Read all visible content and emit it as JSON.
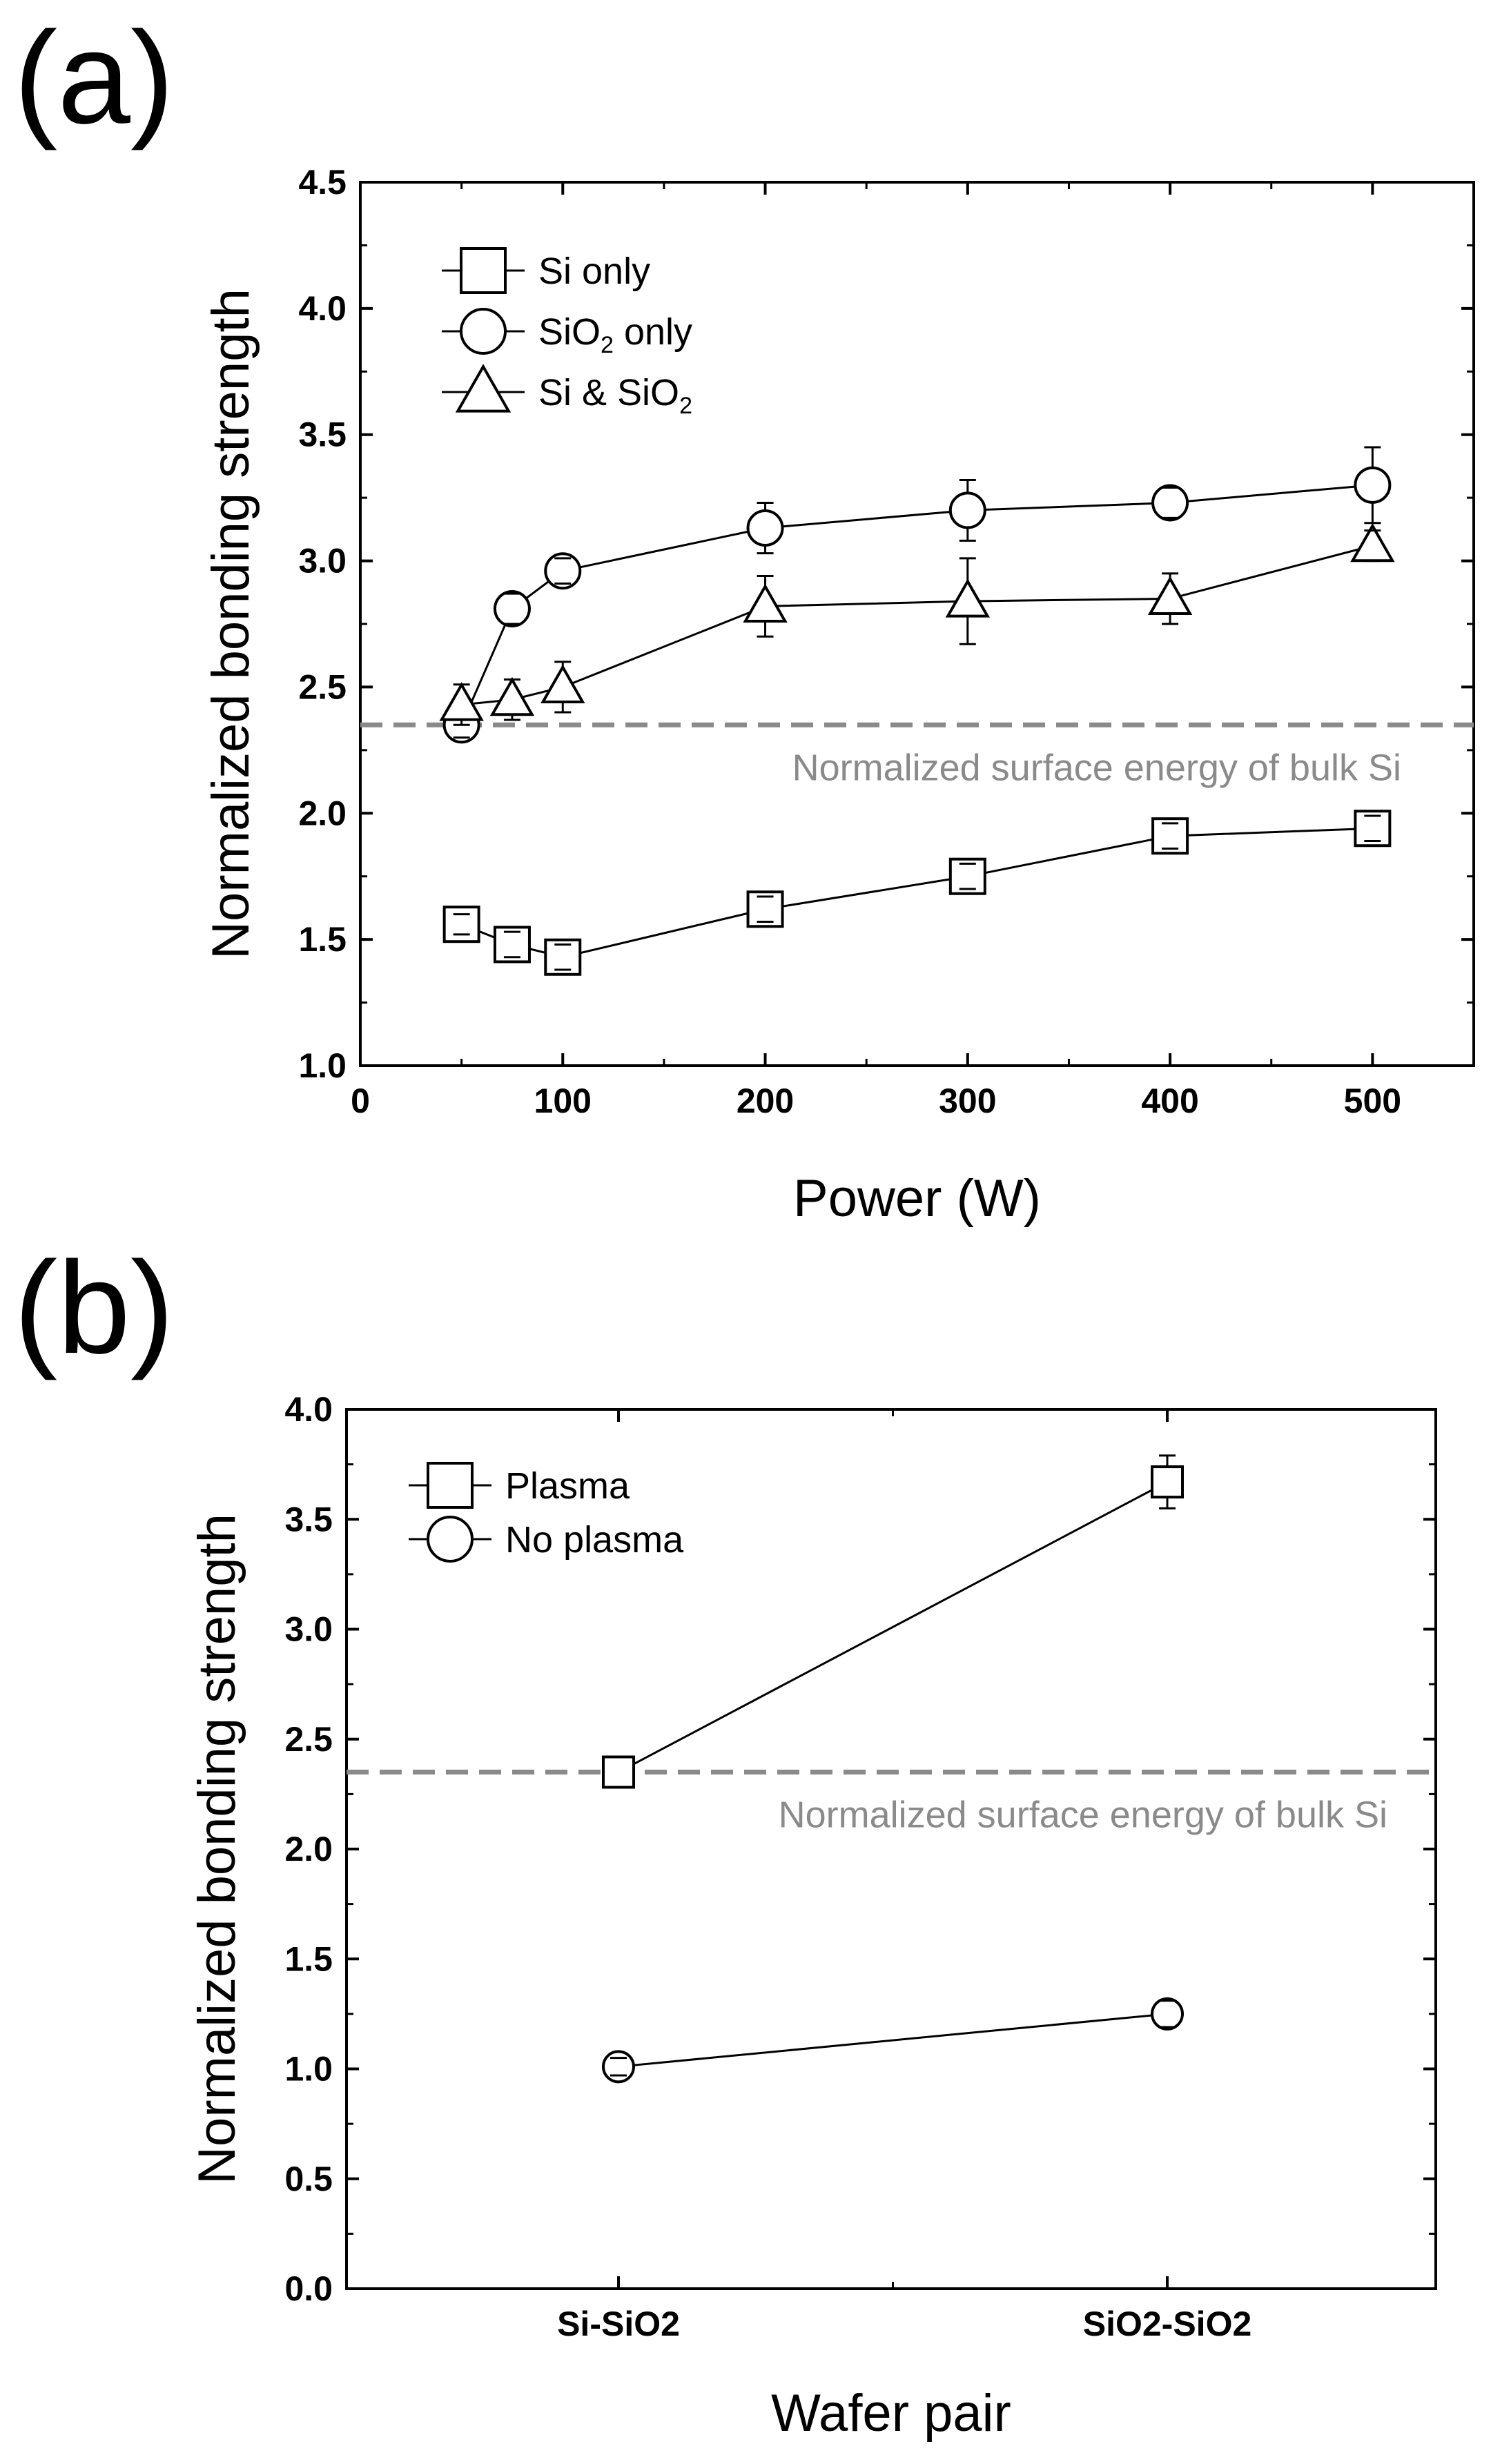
{
  "chart_data": [
    {
      "panel_label": "(a)",
      "type": "line",
      "xlabel": "Power (W)",
      "ylabel": "Normalized bonding strength",
      "xlim": [
        0,
        550
      ],
      "ylim": [
        1.0,
        4.5
      ],
      "x_ticks": [
        0,
        100,
        200,
        300,
        400,
        500
      ],
      "x_tick_labels": [
        "0",
        "100",
        "200",
        "300",
        "400",
        "500"
      ],
      "y_ticks": [
        1.0,
        1.5,
        2.0,
        2.5,
        3.0,
        3.5,
        4.0,
        4.5
      ],
      "y_tick_labels": [
        "1.0",
        "1.5",
        "2.0",
        "2.5",
        "3.0",
        "3.5",
        "4.0",
        "4.5"
      ],
      "grid": false,
      "legend_position": "top-left",
      "series": [
        {
          "name": "Si only",
          "legend_main": "Si only",
          "legend_sub": "",
          "legend_tail": "",
          "marker": "square",
          "x": [
            50,
            75,
            100,
            200,
            300,
            400,
            500
          ],
          "values": [
            1.56,
            1.48,
            1.43,
            1.62,
            1.75,
            1.91,
            1.94
          ],
          "errors": [
            0.04,
            0.05,
            0.05,
            0.05,
            0.05,
            0.05,
            0.05
          ]
        },
        {
          "name": "SiO2 only",
          "legend_main": "SiO",
          "legend_sub": "2",
          "legend_tail": " only",
          "marker": "circle",
          "x": [
            50,
            75,
            100,
            200,
            300,
            400,
            500
          ],
          "values": [
            2.35,
            2.81,
            2.96,
            3.13,
            3.2,
            3.23,
            3.3
          ],
          "errors": [
            0.05,
            0.06,
            0.05,
            0.1,
            0.12,
            0.06,
            0.15
          ]
        },
        {
          "name": "Si & SiO2",
          "legend_main": "Si & SiO",
          "legend_sub": "2",
          "legend_tail": "",
          "marker": "triangle",
          "x": [
            50,
            75,
            100,
            200,
            300,
            400,
            500
          ],
          "values": [
            2.43,
            2.45,
            2.5,
            2.82,
            2.84,
            2.85,
            3.06
          ],
          "errors": [
            0.08,
            0.08,
            0.1,
            0.12,
            0.17,
            0.1,
            0.06
          ]
        }
      ],
      "reference_line": {
        "value": 2.35,
        "label": "Normalized surface energy of bulk Si",
        "color": "#8a8a8a"
      }
    },
    {
      "panel_label": "(b)",
      "type": "line",
      "xlabel": "Wafer pair",
      "ylabel": "Normalized bonding strength",
      "categories": [
        "Si-SiO2",
        "SiO2-SiO2"
      ],
      "ylim": [
        0.0,
        4.0
      ],
      "y_ticks": [
        0.0,
        0.5,
        1.0,
        1.5,
        2.0,
        2.5,
        3.0,
        3.5,
        4.0
      ],
      "y_tick_labels": [
        "0.0",
        "0.5",
        "1.0",
        "1.5",
        "2.0",
        "2.5",
        "3.0",
        "3.5",
        "4.0"
      ],
      "grid": false,
      "legend_position": "top-left",
      "series": [
        {
          "name": "Plasma",
          "legend_main": "Plasma",
          "legend_sub": "",
          "legend_tail": "",
          "marker": "square",
          "values": [
            2.35,
            3.67
          ],
          "errors": [
            0.07,
            0.12
          ]
        },
        {
          "name": "No plasma",
          "legend_main": "No plasma",
          "legend_sub": "",
          "legend_tail": "",
          "marker": "circle",
          "values": [
            1.01,
            1.25
          ],
          "errors": [
            0.04,
            0.06
          ]
        }
      ],
      "reference_line": {
        "value": 2.35,
        "label": "Normalized surface energy of bulk Si",
        "color": "#8a8a8a"
      }
    }
  ]
}
